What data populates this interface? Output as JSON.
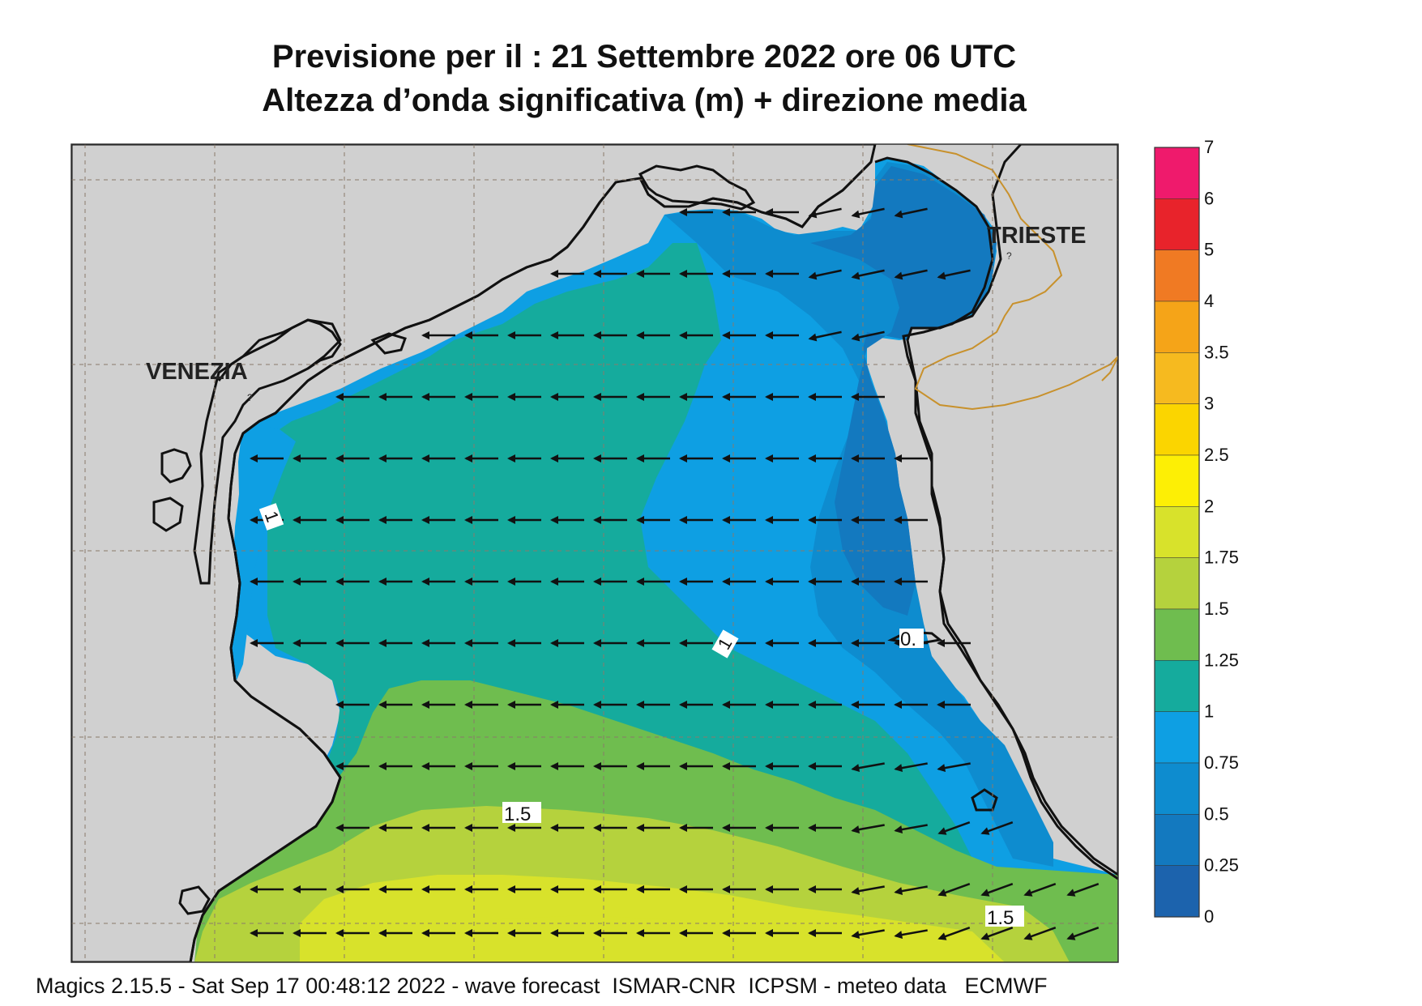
{
  "title_line1": "Previsione per il  :  21 Settembre 2022   ore 06 UTC",
  "title_line2": "Altezza d’onda significativa (m) + direzione media",
  "footer": "Magics 2.15.5 - Sat Sep 17 00:48:12 2022 - wave forecast  ISMAR-CNR  ICPSM - meteo data   ECMWF",
  "cities": [
    {
      "name": "VENEZIA"
    },
    {
      "name": "TRIESTE"
    }
  ],
  "contour_labels": [
    "1",
    "1",
    "0.",
    "1.5",
    "1.5"
  ],
  "legend": {
    "ticks": [
      "7",
      "6",
      "5",
      "4",
      "3.5",
      "3",
      "2.5",
      "2",
      "1.75",
      "1.5",
      "1.25",
      "1",
      "0.75",
      "0.5",
      "0.25",
      "0"
    ],
    "colors": [
      "#ef1a6c",
      "#e8232b",
      "#f07a23",
      "#f5a418",
      "#f6ba1f",
      "#fbd500",
      "#fdef05",
      "#d8e22b",
      "#b5d23d",
      "#6fbd4f",
      "#15ab9d",
      "#0e9fe3",
      "#0e8ccf",
      "#1379bf",
      "#1c63ad"
    ]
  },
  "colors": {
    "land": "#d0d0d0",
    "coast": "#111111",
    "border": "#c8912c",
    "arrow": "#111111"
  },
  "wave_direction": "W"
}
